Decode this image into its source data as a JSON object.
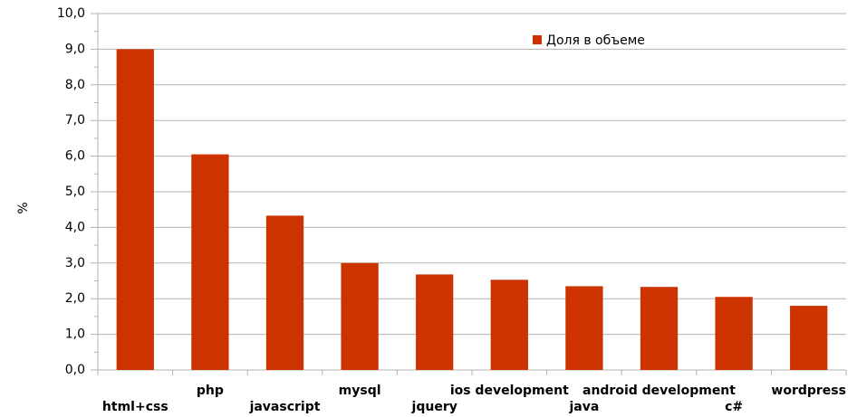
{
  "chart_data": {
    "type": "bar",
    "y_label": "%",
    "categories": [
      "html+css",
      "php",
      "javascript",
      "mysql",
      "jquery",
      "ios development",
      "java",
      "android development",
      "c#",
      "wordpress"
    ],
    "series": [
      {
        "name": "Доля в объеме",
        "color": "#cc3300",
        "values": [
          9.0,
          6.05,
          4.33,
          3.0,
          2.68,
          2.53,
          2.35,
          2.33,
          2.05,
          1.8
        ]
      }
    ],
    "ylim": [
      0,
      10
    ],
    "yticks": [
      {
        "value": 0,
        "label": "0,0"
      },
      {
        "value": 1,
        "label": "1,0"
      },
      {
        "value": 2,
        "label": "2,0"
      },
      {
        "value": 3,
        "label": "3,0"
      },
      {
        "value": 4,
        "label": "4,0"
      },
      {
        "value": 5,
        "label": "5,0"
      },
      {
        "value": 6,
        "label": "6,0"
      },
      {
        "value": 7,
        "label": "7,0"
      },
      {
        "value": 8,
        "label": "8,0"
      },
      {
        "value": 9,
        "label": "9,0"
      },
      {
        "value": 10,
        "label": "10,0"
      }
    ],
    "grid": true,
    "legend": "top-right"
  }
}
